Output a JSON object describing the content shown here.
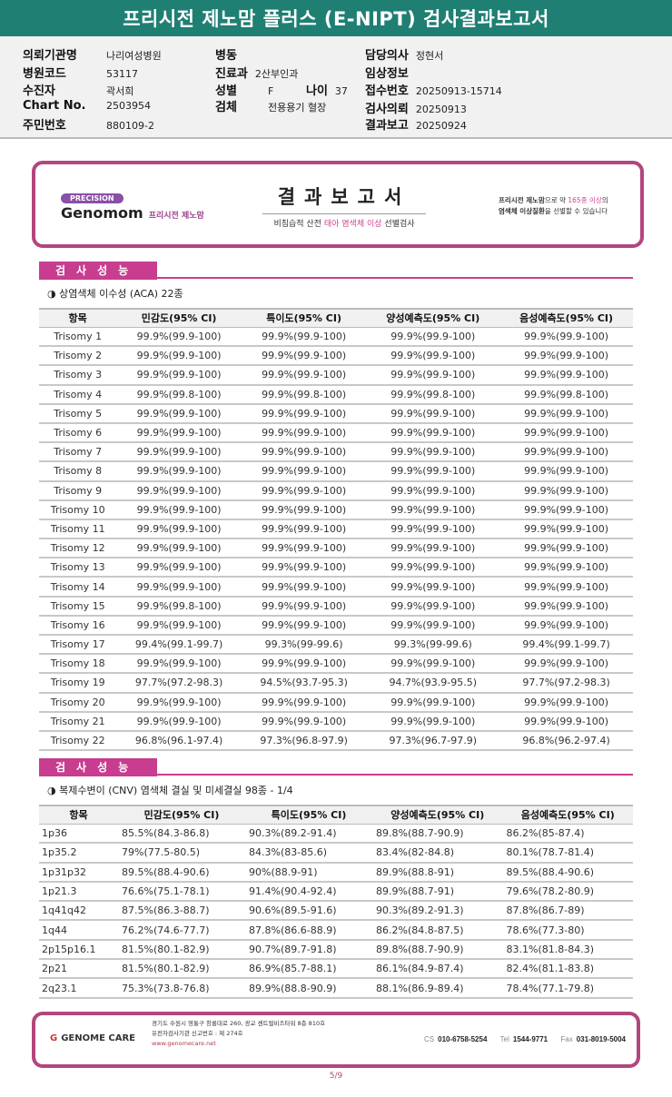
{
  "title": "프리시전 제노맘 플러스 (E-NIPT) 검사결과보고서",
  "info": {
    "hospital_label": "의뢰기관명",
    "hospital": "나리여성병원",
    "code_label": "병원코드",
    "code": "53117",
    "patient_label": "수진자",
    "patient": "곽서희",
    "chart_label": "Chart No.",
    "chart": "2503954",
    "id_label": "주민번호",
    "id": "880109-2",
    "ward_label": "병동",
    "dept_label": "진료과",
    "dept": "2산부인과",
    "sex_label": "성별",
    "sex": "F",
    "age_label": "나이",
    "age": "37",
    "specimen_label": "검체",
    "specimen": "전용용기 혈장",
    "doctor_label": "담당의사",
    "doctor": "정현서",
    "clinical_label": "임상정보",
    "receipt_label": "접수번호",
    "receipt": "20250913-15714",
    "request_label": "검사의뢰",
    "request": "20250913",
    "report_label": "결과보고",
    "report": "20250924"
  },
  "banner": {
    "precision": "PRECISION",
    "brand": "Genomom",
    "brand_kr": "프리시전 제노맘",
    "title": "결과보고서",
    "sub_a": "비침습적 산전 ",
    "sub_b": "태아 염색체 이상",
    "sub_c": " 선별검사",
    "right_1a": "프리시전 제노맘",
    "right_1b": "으로 약 ",
    "right_1c": "165종 이상",
    "right_1d": "의",
    "right_2a": "염색체 이상질환",
    "right_2b": "을 선별할 수 있습니다",
    "accent": "#c83d8f"
  },
  "section1": {
    "header": "검사성능",
    "subtitle": "◑ 상염색체 이수성 (ACA) 22종",
    "columns": [
      "항목",
      "민감도(95% CI)",
      "특이도(95% CI)",
      "양성예측도(95% CI)",
      "음성예측도(95% CI)"
    ],
    "rows": [
      [
        "Trisomy 1",
        "99.9%(99.9-100)",
        "99.9%(99.9-100)",
        "99.9%(99.9-100)",
        "99.9%(99.9-100)"
      ],
      [
        "Trisomy 2",
        "99.9%(99.9-100)",
        "99.9%(99.9-100)",
        "99.9%(99.9-100)",
        "99.9%(99.9-100)"
      ],
      [
        "Trisomy 3",
        "99.9%(99.9-100)",
        "99.9%(99.9-100)",
        "99.9%(99.9-100)",
        "99.9%(99.9-100)"
      ],
      [
        "Trisomy 4",
        "99.9%(99.8-100)",
        "99.9%(99.8-100)",
        "99.9%(99.8-100)",
        "99.9%(99.8-100)"
      ],
      [
        "Trisomy 5",
        "99.9%(99.9-100)",
        "99.9%(99.9-100)",
        "99.9%(99.9-100)",
        "99.9%(99.9-100)"
      ],
      [
        "Trisomy 6",
        "99.9%(99.9-100)",
        "99.9%(99.9-100)",
        "99.9%(99.9-100)",
        "99.9%(99.9-100)"
      ],
      [
        "Trisomy 7",
        "99.9%(99.9-100)",
        "99.9%(99.9-100)",
        "99.9%(99.9-100)",
        "99.9%(99.9-100)"
      ],
      [
        "Trisomy 8",
        "99.9%(99.9-100)",
        "99.9%(99.9-100)",
        "99.9%(99.9-100)",
        "99.9%(99.9-100)"
      ],
      [
        "Trisomy 9",
        "99.9%(99.9-100)",
        "99.9%(99.9-100)",
        "99.9%(99.9-100)",
        "99.9%(99.9-100)"
      ],
      [
        "Trisomy 10",
        "99.9%(99.9-100)",
        "99.9%(99.9-100)",
        "99.9%(99.9-100)",
        "99.9%(99.9-100)"
      ],
      [
        "Trisomy 11",
        "99.9%(99.9-100)",
        "99.9%(99.9-100)",
        "99.9%(99.9-100)",
        "99.9%(99.9-100)"
      ],
      [
        "Trisomy 12",
        "99.9%(99.9-100)",
        "99.9%(99.9-100)",
        "99.9%(99.9-100)",
        "99.9%(99.9-100)"
      ],
      [
        "Trisomy 13",
        "99.9%(99.9-100)",
        "99.9%(99.9-100)",
        "99.9%(99.9-100)",
        "99.9%(99.9-100)"
      ],
      [
        "Trisomy 14",
        "99.9%(99.9-100)",
        "99.9%(99.9-100)",
        "99.9%(99.9-100)",
        "99.9%(99.9-100)"
      ],
      [
        "Trisomy 15",
        "99.9%(99.8-100)",
        "99.9%(99.9-100)",
        "99.9%(99.9-100)",
        "99.9%(99.9-100)"
      ],
      [
        "Trisomy 16",
        "99.9%(99.9-100)",
        "99.9%(99.9-100)",
        "99.9%(99.9-100)",
        "99.9%(99.9-100)"
      ],
      [
        "Trisomy 17",
        "99.4%(99.1-99.7)",
        "99.3%(99-99.6)",
        "99.3%(99-99.6)",
        "99.4%(99.1-99.7)"
      ],
      [
        "Trisomy 18",
        "99.9%(99.9-100)",
        "99.9%(99.9-100)",
        "99.9%(99.9-100)",
        "99.9%(99.9-100)"
      ],
      [
        "Trisomy 19",
        "97.7%(97.2-98.3)",
        "94.5%(93.7-95.3)",
        "94.7%(93.9-95.5)",
        "97.7%(97.2-98.3)"
      ],
      [
        "Trisomy 20",
        "99.9%(99.9-100)",
        "99.9%(99.9-100)",
        "99.9%(99.9-100)",
        "99.9%(99.9-100)"
      ],
      [
        "Trisomy 21",
        "99.9%(99.9-100)",
        "99.9%(99.9-100)",
        "99.9%(99.9-100)",
        "99.9%(99.9-100)"
      ],
      [
        "Trisomy 22",
        "96.8%(96.1-97.4)",
        "97.3%(96.8-97.9)",
        "97.3%(96.7-97.9)",
        "96.8%(96.2-97.4)"
      ]
    ]
  },
  "section2": {
    "header": "검사성능",
    "subtitle": "◑ 복제수변이 (CNV) 염색체 결실 및 미세결실 98종 - 1/4",
    "columns": [
      "항목",
      "민감도(95% CI)",
      "특이도(95% CI)",
      "양성예측도(95% CI)",
      "음성예측도(95% CI)"
    ],
    "rows": [
      [
        "1p36",
        "85.5%(84.3-86.8)",
        "90.3%(89.2-91.4)",
        "89.8%(88.7-90.9)",
        "86.2%(85-87.4)"
      ],
      [
        "1p35.2",
        "79%(77.5-80.5)",
        "84.3%(83-85.6)",
        "83.4%(82-84.8)",
        "80.1%(78.7-81.4)"
      ],
      [
        "1p31p32",
        "89.5%(88.4-90.6)",
        "90%(88.9-91)",
        "89.9%(88.8-91)",
        "89.5%(88.4-90.6)"
      ],
      [
        "1p21.3",
        "76.6%(75.1-78.1)",
        "91.4%(90.4-92.4)",
        "89.9%(88.7-91)",
        "79.6%(78.2-80.9)"
      ],
      [
        "1q41q42",
        "87.5%(86.3-88.7)",
        "90.6%(89.5-91.6)",
        "90.3%(89.2-91.3)",
        "87.8%(86.7-89)"
      ],
      [
        "1q44",
        "76.2%(74.6-77.7)",
        "87.8%(86.6-88.9)",
        "86.2%(84.8-87.5)",
        "78.6%(77.3-80)"
      ],
      [
        "2p15p16.1",
        "81.5%(80.1-82.9)",
        "90.7%(89.7-91.8)",
        "89.8%(88.7-90.9)",
        "83.1%(81.8-84.3)"
      ],
      [
        "2p21",
        "81.5%(80.1-82.9)",
        "86.9%(85.7-88.1)",
        "86.1%(84.9-87.4)",
        "82.4%(81.1-83.8)"
      ],
      [
        "2q23.1",
        "75.3%(73.8-76.8)",
        "89.9%(88.8-90.9)",
        "88.1%(86.9-89.4)",
        "78.4%(77.1-79.8)"
      ]
    ]
  },
  "footer": {
    "logo": "GENOME CARE",
    "addr1": "경기도 수원시 영통구 창룡대로 260, 광교 센트럴비즈타워 8층 810호",
    "addr2": "유전자검사기관 신고번호 : 제 274호",
    "url": "www.genomecare.net",
    "cs_label": "CS",
    "cs": "010-6758-5254",
    "tel_label": "Tel",
    "tel": "1544-9771",
    "fax_label": "Fax",
    "fax": "031-8019-5004"
  },
  "page": "5/9"
}
